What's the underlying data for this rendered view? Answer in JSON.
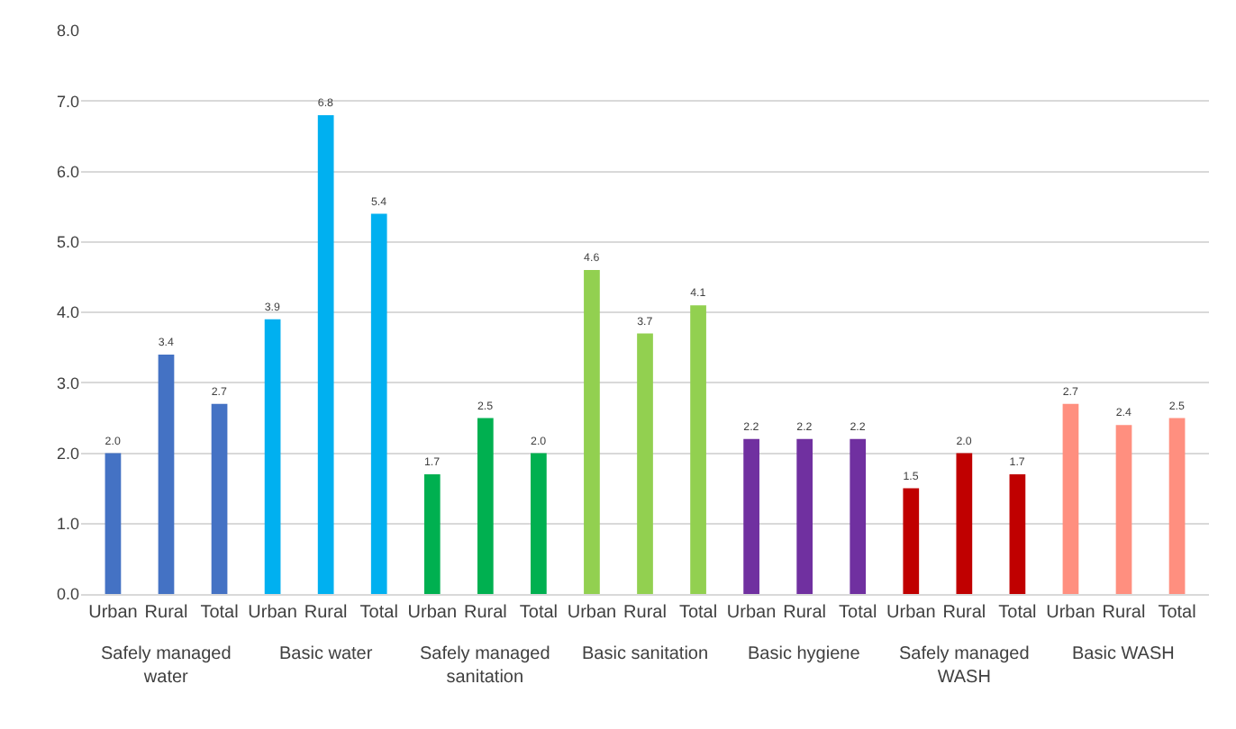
{
  "chart_data": {
    "type": "bar",
    "categories": [
      "Urban",
      "Rural",
      "Total",
      "Urban",
      "Rural",
      "Total",
      "Urban",
      "Rural",
      "Total",
      "Urban",
      "Rural",
      "Total",
      "Urban",
      "Rural",
      "Total",
      "Urban",
      "Rural",
      "Total",
      "Urban",
      "Rural",
      "Total"
    ],
    "values": [
      2.0,
      3.4,
      2.7,
      3.9,
      6.8,
      5.4,
      1.7,
      2.5,
      2.0,
      4.6,
      3.7,
      4.1,
      2.2,
      2.2,
      2.2,
      1.5,
      2.0,
      1.7,
      2.7,
      2.4,
      2.5
    ],
    "value_labels": [
      "2.0",
      "3.4",
      "2.7",
      "3.9",
      "6.8",
      "5.4",
      "1.7",
      "2.5",
      "2.0",
      "4.6",
      "3.7",
      "4.1",
      "2.2",
      "2.2",
      "2.2",
      "1.5",
      "2.0",
      "1.7",
      "2.7",
      "2.4",
      "2.5"
    ],
    "colors": [
      "#4472c4",
      "#4472c4",
      "#4472c4",
      "#00b0f0",
      "#00b0f0",
      "#00b0f0",
      "#00b050",
      "#00b050",
      "#00b050",
      "#92d050",
      "#92d050",
      "#92d050",
      "#7030a0",
      "#7030a0",
      "#7030a0",
      "#c00000",
      "#c00000",
      "#c00000",
      "#ff8f7f",
      "#ff8f7f",
      "#ff8f7f"
    ],
    "annotations": [
      "Safely managed water",
      "Basic water",
      "Safely managed sanitation",
      "Basic sanitation",
      "Basic hygiene",
      "Safely managed WASH",
      "Basic WASH"
    ],
    "ylim": [
      0,
      8
    ],
    "yticks": [
      {
        "value": 0,
        "label": "0.0"
      },
      {
        "value": 1,
        "label": "1.0"
      },
      {
        "value": 2,
        "label": "2.0"
      },
      {
        "value": 3,
        "label": "3.0"
      },
      {
        "value": 4,
        "label": "4.0"
      },
      {
        "value": 5,
        "label": "5.0"
      },
      {
        "value": 6,
        "label": "6.0"
      },
      {
        "value": 7,
        "label": "7.0"
      },
      {
        "value": 8,
        "label": "8.0"
      }
    ],
    "grid": "y"
  }
}
